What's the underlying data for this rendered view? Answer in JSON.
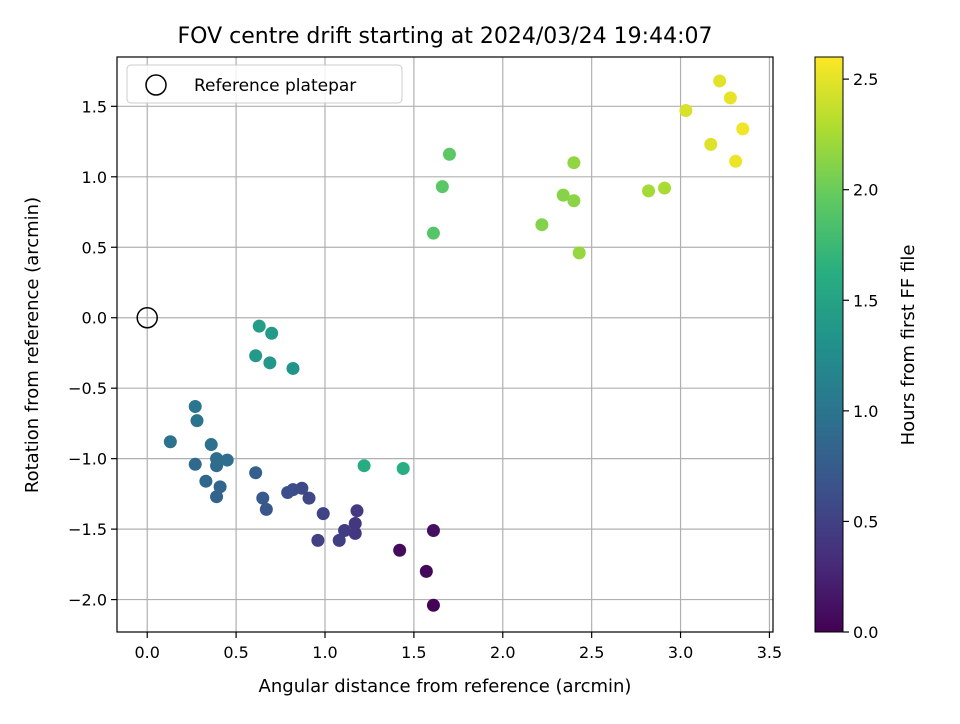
{
  "chart_data": {
    "type": "scatter",
    "title": "FOV centre drift starting at 2024/03/24 19:44:07",
    "xlabel": "Angular distance from reference (arcmin)",
    "ylabel": "Rotation from reference (arcmin)",
    "xlim": [
      -0.17,
      3.52
    ],
    "ylim": [
      -2.23,
      1.85
    ],
    "xticks": [
      "0.0",
      "0.5",
      "1.0",
      "1.5",
      "2.0",
      "2.5",
      "3.0",
      "3.5"
    ],
    "xtick_values": [
      0.0,
      0.5,
      1.0,
      1.5,
      2.0,
      2.5,
      3.0,
      3.5
    ],
    "yticks": [
      "−2.0",
      "−1.5",
      "−1.0",
      "−0.5",
      "0.0",
      "0.5",
      "1.0",
      "1.5"
    ],
    "ytick_values": [
      -2.0,
      -1.5,
      -1.0,
      -0.5,
      0.0,
      0.5,
      1.0,
      1.5
    ],
    "grid": true,
    "legend": {
      "placement": "top-left",
      "entries": [
        {
          "label": "Reference platepar",
          "marker": "open-circle"
        }
      ]
    },
    "reference_point": {
      "x": 0.0,
      "y": 0.0
    },
    "colorbar": {
      "label": "Hours from first FF file",
      "colormap": "viridis",
      "range": [
        0.0,
        2.6
      ],
      "ticks": [
        "0.0",
        "0.5",
        "1.0",
        "1.5",
        "2.0",
        "2.5"
      ],
      "tick_values": [
        0.0,
        0.5,
        1.0,
        1.5,
        2.0,
        2.5
      ]
    },
    "points": [
      {
        "x": 1.61,
        "y": -2.04,
        "c": 0.02
      },
      {
        "x": 1.57,
        "y": -1.8,
        "c": 0.05
      },
      {
        "x": 1.42,
        "y": -1.65,
        "c": 0.08
      },
      {
        "x": 1.61,
        "y": -1.51,
        "c": 0.11
      },
      {
        "x": 1.17,
        "y": -1.53,
        "c": 0.4
      },
      {
        "x": 1.17,
        "y": -1.46,
        "c": 0.42
      },
      {
        "x": 1.18,
        "y": -1.37,
        "c": 0.44
      },
      {
        "x": 1.11,
        "y": -1.51,
        "c": 0.46
      },
      {
        "x": 1.08,
        "y": -1.58,
        "c": 0.48
      },
      {
        "x": 0.96,
        "y": -1.58,
        "c": 0.5
      },
      {
        "x": 0.99,
        "y": -1.39,
        "c": 0.52
      },
      {
        "x": 0.91,
        "y": -1.28,
        "c": 0.55
      },
      {
        "x": 0.87,
        "y": -1.21,
        "c": 0.58
      },
      {
        "x": 0.82,
        "y": -1.22,
        "c": 0.6
      },
      {
        "x": 0.79,
        "y": -1.24,
        "c": 0.62
      },
      {
        "x": 0.67,
        "y": -1.36,
        "c": 0.7
      },
      {
        "x": 0.65,
        "y": -1.28,
        "c": 0.72
      },
      {
        "x": 0.61,
        "y": -1.1,
        "c": 0.78
      },
      {
        "x": 0.39,
        "y": -1.27,
        "c": 0.82
      },
      {
        "x": 0.41,
        "y": -1.2,
        "c": 0.84
      },
      {
        "x": 0.33,
        "y": -1.16,
        "c": 0.86
      },
      {
        "x": 0.27,
        "y": -1.04,
        "c": 0.88
      },
      {
        "x": 0.39,
        "y": -1.05,
        "c": 0.9
      },
      {
        "x": 0.39,
        "y": -1.0,
        "c": 0.92
      },
      {
        "x": 0.45,
        "y": -1.01,
        "c": 0.94
      },
      {
        "x": 0.36,
        "y": -0.9,
        "c": 0.96
      },
      {
        "x": 0.13,
        "y": -0.88,
        "c": 0.98
      },
      {
        "x": 0.28,
        "y": -0.73,
        "c": 1.0
      },
      {
        "x": 0.27,
        "y": -0.63,
        "c": 1.02
      },
      {
        "x": 0.82,
        "y": -0.36,
        "c": 1.35
      },
      {
        "x": 0.69,
        "y": -0.32,
        "c": 1.37
      },
      {
        "x": 0.61,
        "y": -0.27,
        "c": 1.39
      },
      {
        "x": 0.7,
        "y": -0.11,
        "c": 1.41
      },
      {
        "x": 0.63,
        "y": -0.06,
        "c": 1.43
      },
      {
        "x": 1.22,
        "y": -1.05,
        "c": 1.6
      },
      {
        "x": 1.44,
        "y": -1.07,
        "c": 1.62
      },
      {
        "x": 1.61,
        "y": 0.6,
        "c": 1.9
      },
      {
        "x": 1.66,
        "y": 0.93,
        "c": 1.92
      },
      {
        "x": 1.7,
        "y": 1.16,
        "c": 1.94
      },
      {
        "x": 2.22,
        "y": 0.66,
        "c": 2.1
      },
      {
        "x": 2.34,
        "y": 0.87,
        "c": 2.12
      },
      {
        "x": 2.4,
        "y": 0.83,
        "c": 2.14
      },
      {
        "x": 2.4,
        "y": 1.1,
        "c": 2.16
      },
      {
        "x": 2.43,
        "y": 0.46,
        "c": 2.18
      },
      {
        "x": 2.82,
        "y": 0.9,
        "c": 2.24
      },
      {
        "x": 2.91,
        "y": 0.92,
        "c": 2.26
      },
      {
        "x": 3.03,
        "y": 1.47,
        "c": 2.45
      },
      {
        "x": 3.17,
        "y": 1.23,
        "c": 2.47
      },
      {
        "x": 3.22,
        "y": 1.68,
        "c": 2.49
      },
      {
        "x": 3.28,
        "y": 1.56,
        "c": 2.51
      },
      {
        "x": 3.31,
        "y": 1.11,
        "c": 2.53
      },
      {
        "x": 3.35,
        "y": 1.34,
        "c": 2.55
      }
    ]
  }
}
